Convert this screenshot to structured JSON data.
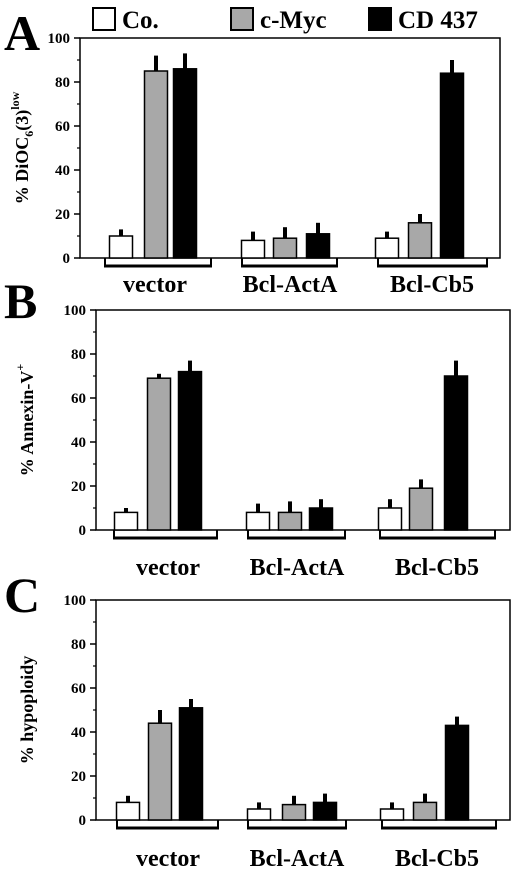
{
  "legend": [
    {
      "label": "Co.",
      "color": "#ffffff"
    },
    {
      "label": "c-Myc",
      "color": "#a8a8a8"
    },
    {
      "label": "CD 437",
      "color": "#000000"
    }
  ],
  "chart_data": [
    {
      "panel": "A",
      "type": "bar",
      "ylabel": {
        "main": "% DiOC",
        "sub": "6",
        "after": "(3)",
        "sup": "low"
      },
      "ylim": [
        0,
        100
      ],
      "yticks": [
        0,
        20,
        40,
        60,
        80,
        100
      ],
      "categories": [
        "vector",
        "Bcl-ActA",
        "Bcl-Cb5"
      ],
      "series": [
        {
          "name": "Co.",
          "values": [
            10,
            8,
            9
          ],
          "errors": [
            3,
            4,
            3
          ]
        },
        {
          "name": "c-Myc",
          "values": [
            85,
            9,
            16
          ],
          "errors": [
            7,
            5,
            4
          ]
        },
        {
          "name": "CD 437",
          "values": [
            86,
            11,
            84
          ],
          "errors": [
            7,
            5,
            6
          ]
        }
      ]
    },
    {
      "panel": "B",
      "type": "bar",
      "ylabel": {
        "main": "% Annexin-V",
        "sub": "",
        "after": "",
        "sup": "+"
      },
      "ylim": [
        0,
        100
      ],
      "yticks": [
        0,
        20,
        40,
        60,
        80,
        100
      ],
      "categories": [
        "vector",
        "Bcl-ActA",
        "Bcl-Cb5"
      ],
      "series": [
        {
          "name": "Co.",
          "values": [
            8,
            8,
            10
          ],
          "errors": [
            2,
            4,
            4
          ]
        },
        {
          "name": "c-Myc",
          "values": [
            69,
            8,
            19
          ],
          "errors": [
            2,
            5,
            4
          ]
        },
        {
          "name": "CD 437",
          "values": [
            72,
            10,
            70
          ],
          "errors": [
            5,
            4,
            7
          ]
        }
      ]
    },
    {
      "panel": "C",
      "type": "bar",
      "ylabel": {
        "main": "% hypoploidy",
        "sub": "",
        "after": "",
        "sup": ""
      },
      "ylim": [
        0,
        100
      ],
      "yticks": [
        0,
        20,
        40,
        60,
        80,
        100
      ],
      "categories": [
        "vector",
        "Bcl-ActA",
        "Bcl-Cb5"
      ],
      "series": [
        {
          "name": "Co.",
          "values": [
            8,
            5,
            5
          ],
          "errors": [
            3,
            3,
            3
          ]
        },
        {
          "name": "c-Myc",
          "values": [
            44,
            7,
            8
          ],
          "errors": [
            6,
            4,
            4
          ]
        },
        {
          "name": "CD 437",
          "values": [
            51,
            8,
            43
          ],
          "errors": [
            4,
            4,
            4
          ]
        }
      ]
    }
  ]
}
